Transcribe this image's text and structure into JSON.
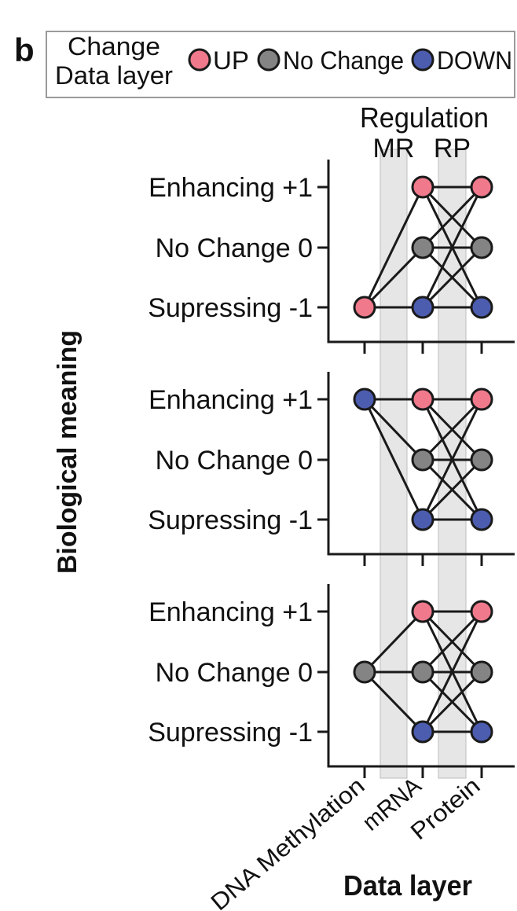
{
  "panel_letter": "b",
  "legend": {
    "title_line1": "Change",
    "title_line2": "Data layer",
    "items": [
      {
        "label": "UP",
        "color": "#f07a8c"
      },
      {
        "label": "No Change",
        "color": "#848484"
      },
      {
        "label": "DOWN",
        "color": "#4c5db0"
      }
    ]
  },
  "regulation": {
    "title": "Regulation",
    "bands": [
      {
        "label": "MR",
        "between": [
          0,
          1
        ]
      },
      {
        "label": "RP",
        "between": [
          1,
          2
        ]
      }
    ]
  },
  "ylabel": "Biological meaning",
  "xlabel": "Data layer",
  "x_categories": [
    "DNA Methylation",
    "mRNA",
    "Protein"
  ],
  "y_levels": [
    {
      "value": 1,
      "label": "Enhancing +1"
    },
    {
      "value": 0,
      "label": "No Change 0"
    },
    {
      "value": -1,
      "label": "Supressing -1"
    }
  ],
  "colors": {
    "up": "#f07a8c",
    "nochange": "#848484",
    "down": "#4c5db0",
    "edge": "#1a1a1a",
    "edge_muted": "#8c8c8c",
    "band": "#e6e6e6"
  },
  "chart_data": [
    {
      "type": "network",
      "nodes": [
        {
          "layer": 0,
          "level": -1,
          "state": "up"
        },
        {
          "layer": 1,
          "level": 1,
          "state": "up"
        },
        {
          "layer": 1,
          "level": 0,
          "state": "nochange"
        },
        {
          "layer": 1,
          "level": -1,
          "state": "down"
        },
        {
          "layer": 2,
          "level": 1,
          "state": "up"
        },
        {
          "layer": 2,
          "level": 0,
          "state": "nochange"
        },
        {
          "layer": 2,
          "level": -1,
          "state": "down"
        }
      ],
      "edges": [
        {
          "from": [
            0,
            -1
          ],
          "to": [
            1,
            1
          ]
        },
        {
          "from": [
            0,
            -1
          ],
          "to": [
            1,
            0
          ]
        },
        {
          "from": [
            0,
            -1
          ],
          "to": [
            1,
            -1
          ]
        },
        {
          "from": [
            1,
            1
          ],
          "to": [
            2,
            1
          ]
        },
        {
          "from": [
            1,
            1
          ],
          "to": [
            2,
            0
          ]
        },
        {
          "from": [
            1,
            1
          ],
          "to": [
            2,
            -1
          ]
        },
        {
          "from": [
            1,
            0
          ],
          "to": [
            2,
            1
          ]
        },
        {
          "from": [
            1,
            0
          ],
          "to": [
            2,
            0
          ]
        },
        {
          "from": [
            1,
            0
          ],
          "to": [
            2,
            -1
          ]
        },
        {
          "from": [
            1,
            -1
          ],
          "to": [
            2,
            1
          ]
        },
        {
          "from": [
            1,
            -1
          ],
          "to": [
            2,
            0
          ]
        },
        {
          "from": [
            1,
            -1
          ],
          "to": [
            2,
            -1
          ]
        }
      ]
    },
    {
      "type": "network",
      "nodes": [
        {
          "layer": 0,
          "level": 1,
          "state": "down"
        },
        {
          "layer": 1,
          "level": 1,
          "state": "up"
        },
        {
          "layer": 1,
          "level": 0,
          "state": "nochange"
        },
        {
          "layer": 1,
          "level": -1,
          "state": "down"
        },
        {
          "layer": 2,
          "level": 1,
          "state": "up"
        },
        {
          "layer": 2,
          "level": 0,
          "state": "nochange"
        },
        {
          "layer": 2,
          "level": -1,
          "state": "down"
        }
      ],
      "edges": [
        {
          "from": [
            0,
            1
          ],
          "to": [
            1,
            1
          ]
        },
        {
          "from": [
            0,
            1
          ],
          "to": [
            1,
            0
          ]
        },
        {
          "from": [
            0,
            1
          ],
          "to": [
            1,
            -1
          ]
        },
        {
          "from": [
            1,
            1
          ],
          "to": [
            2,
            1
          ],
          "muted": true
        },
        {
          "from": [
            1,
            1
          ],
          "to": [
            2,
            0
          ]
        },
        {
          "from": [
            1,
            1
          ],
          "to": [
            2,
            -1
          ]
        },
        {
          "from": [
            1,
            0
          ],
          "to": [
            2,
            1
          ]
        },
        {
          "from": [
            1,
            0
          ],
          "to": [
            2,
            0
          ]
        },
        {
          "from": [
            1,
            0
          ],
          "to": [
            2,
            -1
          ]
        },
        {
          "from": [
            1,
            -1
          ],
          "to": [
            2,
            1
          ]
        },
        {
          "from": [
            1,
            -1
          ],
          "to": [
            2,
            0
          ]
        },
        {
          "from": [
            1,
            -1
          ],
          "to": [
            2,
            -1
          ]
        }
      ]
    },
    {
      "type": "network",
      "nodes": [
        {
          "layer": 0,
          "level": 0,
          "state": "nochange"
        },
        {
          "layer": 1,
          "level": 1,
          "state": "up"
        },
        {
          "layer": 1,
          "level": 0,
          "state": "nochange"
        },
        {
          "layer": 1,
          "level": -1,
          "state": "down"
        },
        {
          "layer": 2,
          "level": 1,
          "state": "up"
        },
        {
          "layer": 2,
          "level": 0,
          "state": "nochange"
        },
        {
          "layer": 2,
          "level": -1,
          "state": "down"
        }
      ],
      "edges": [
        {
          "from": [
            0,
            0
          ],
          "to": [
            1,
            1
          ]
        },
        {
          "from": [
            0,
            0
          ],
          "to": [
            1,
            0
          ]
        },
        {
          "from": [
            0,
            0
          ],
          "to": [
            1,
            -1
          ]
        },
        {
          "from": [
            1,
            1
          ],
          "to": [
            2,
            1
          ]
        },
        {
          "from": [
            1,
            1
          ],
          "to": [
            2,
            0
          ]
        },
        {
          "from": [
            1,
            1
          ],
          "to": [
            2,
            -1
          ]
        },
        {
          "from": [
            1,
            0
          ],
          "to": [
            2,
            1
          ]
        },
        {
          "from": [
            1,
            0
          ],
          "to": [
            2,
            0
          ]
        },
        {
          "from": [
            1,
            0
          ],
          "to": [
            2,
            -1
          ]
        },
        {
          "from": [
            1,
            -1
          ],
          "to": [
            2,
            1
          ]
        },
        {
          "from": [
            1,
            -1
          ],
          "to": [
            2,
            0
          ]
        },
        {
          "from": [
            1,
            -1
          ],
          "to": [
            2,
            -1
          ]
        }
      ]
    }
  ]
}
